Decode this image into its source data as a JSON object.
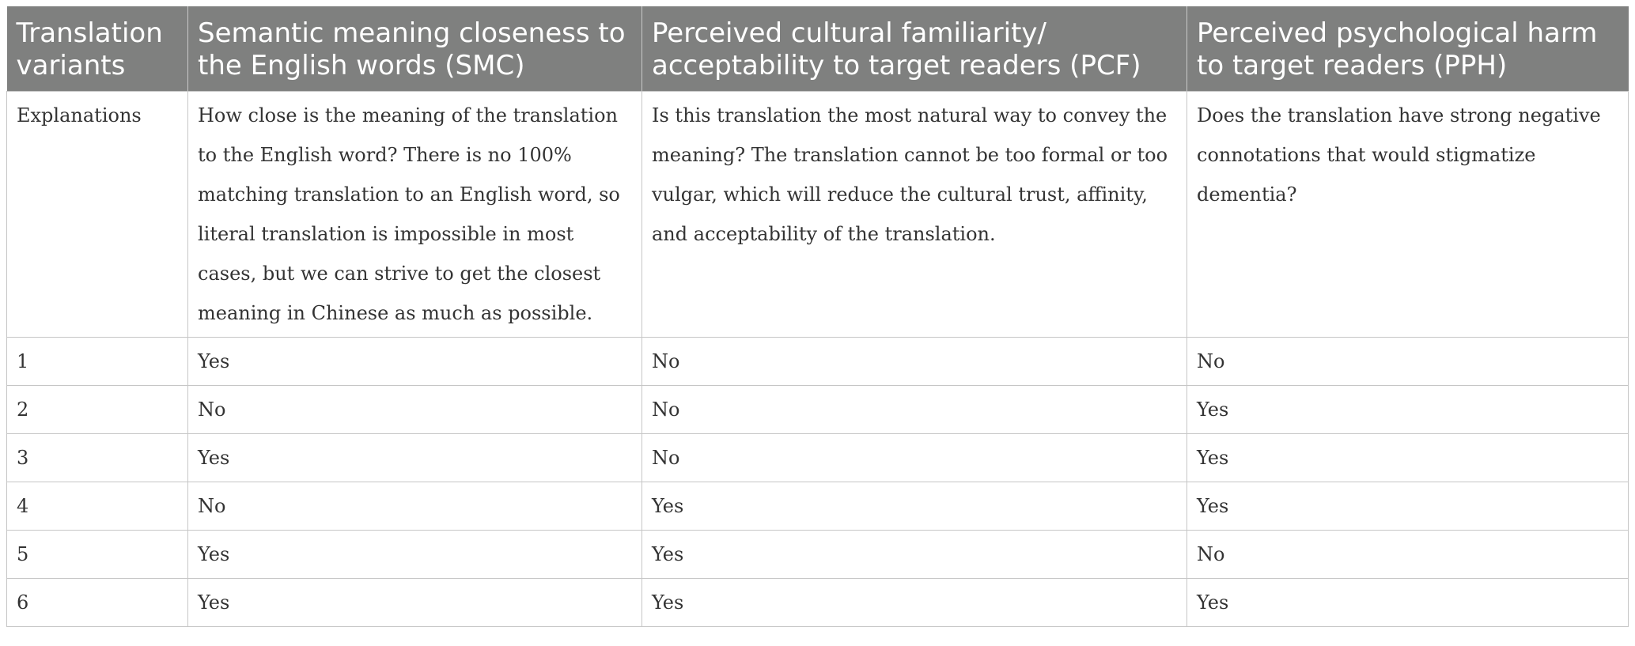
{
  "headers": [
    "Translation variants",
    "Semantic meaning closeness to the English words (SMC)",
    "Perceived cultural familiarity/ acceptability to target readers (PCF)",
    "Perceived psychological harm to target readers (PPH)"
  ],
  "explanations": {
    "label": "Explanations",
    "smc": "How close is the meaning of the translation to the English word? There is no 100% matching translation to an English word, so literal translation is impossible in most cases, but we can strive to get the closest meaning in Chinese as much as possible.",
    "pcf": "Is this translation the most natural way to convey the meaning? The translation cannot be too formal or too vulgar, which will reduce the cultural trust, affinity, and acceptability of the translation.",
    "pph": "Does the translation have strong negative connotations that would stigmatize dementia?"
  },
  "rows": [
    {
      "variant": "1",
      "smc": "Yes",
      "pcf": "No",
      "pph": "No"
    },
    {
      "variant": "2",
      "smc": "No",
      "pcf": "No",
      "pph": "Yes"
    },
    {
      "variant": "3",
      "smc": "Yes",
      "pcf": "No",
      "pph": "Yes"
    },
    {
      "variant": "4",
      "smc": "No",
      "pcf": "Yes",
      "pph": "Yes"
    },
    {
      "variant": "5",
      "smc": "Yes",
      "pcf": "Yes",
      "pph": "No"
    },
    {
      "variant": "6",
      "smc": "Yes",
      "pcf": "Yes",
      "pph": "Yes"
    }
  ]
}
